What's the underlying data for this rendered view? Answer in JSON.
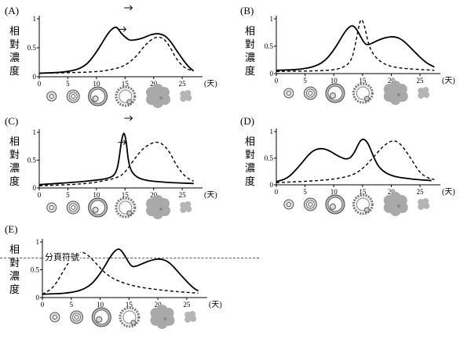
{
  "page_break_label": "分頁符號",
  "chart_data": [
    {
      "type": "line",
      "title": "(A)",
      "ylabel": "相對濃度",
      "xlabel_unit": "(天)",
      "xlim": [
        0,
        28
      ],
      "ylim": [
        0,
        1
      ],
      "x_ticks": [
        0,
        5,
        10,
        15,
        20,
        25
      ],
      "y_ticks": [
        0,
        0.5,
        1
      ],
      "series": [
        {
          "style": "solid",
          "points": [
            [
              0,
              0.06
            ],
            [
              5,
              0.08
            ],
            [
              8,
              0.17
            ],
            [
              10,
              0.42
            ],
            [
              12,
              0.75
            ],
            [
              13,
              0.85
            ],
            [
              13.6,
              0.86
            ],
            [
              14.3,
              0.75
            ],
            [
              15.3,
              0.66
            ],
            [
              16,
              0.62
            ],
            [
              18,
              0.66
            ],
            [
              19.5,
              0.73
            ],
            [
              21,
              0.75
            ],
            [
              22.5,
              0.68
            ],
            [
              24.5,
              0.38
            ],
            [
              26,
              0.18
            ],
            [
              27,
              0.1
            ]
          ]
        },
        {
          "style": "dashed",
          "points": [
            [
              0,
              0.06
            ],
            [
              10,
              0.08
            ],
            [
              13,
              0.13
            ],
            [
              15,
              0.19
            ],
            [
              17,
              0.35
            ],
            [
              18.5,
              0.55
            ],
            [
              20,
              0.67
            ],
            [
              21,
              0.69
            ],
            [
              22,
              0.64
            ],
            [
              23,
              0.49
            ],
            [
              24,
              0.3
            ],
            [
              25.5,
              0.14
            ],
            [
              27,
              0.1
            ]
          ]
        }
      ],
      "has_arrows": true
    },
    {
      "type": "line",
      "title": "(B)",
      "ylabel": "相對濃度",
      "xlabel_unit": "(天)",
      "xlim": [
        0,
        28
      ],
      "ylim": [
        0,
        1
      ],
      "x_ticks": [
        0,
        5,
        10,
        15,
        20,
        25
      ],
      "y_ticks": [
        0,
        0.5,
        1
      ],
      "series": [
        {
          "style": "solid",
          "points": [
            [
              0,
              0.06
            ],
            [
              5,
              0.08
            ],
            [
              8,
              0.18
            ],
            [
              10,
              0.42
            ],
            [
              12,
              0.78
            ],
            [
              13,
              0.88
            ],
            [
              13.6,
              0.86
            ],
            [
              14.3,
              0.75
            ],
            [
              15.3,
              0.55
            ],
            [
              16,
              0.52
            ],
            [
              17.5,
              0.6
            ],
            [
              19,
              0.66
            ],
            [
              20.5,
              0.68
            ],
            [
              22,
              0.62
            ],
            [
              24,
              0.4
            ],
            [
              26,
              0.2
            ],
            [
              27.5,
              0.12
            ]
          ]
        },
        {
          "style": "dashed",
          "points": [
            [
              0,
              0.04
            ],
            [
              8,
              0.05
            ],
            [
              11,
              0.08
            ],
            [
              13,
              0.2
            ],
            [
              13.8,
              0.55
            ],
            [
              14.5,
              0.95
            ],
            [
              14.9,
              1.0
            ],
            [
              15.4,
              0.85
            ],
            [
              16,
              0.55
            ],
            [
              16.8,
              0.35
            ],
            [
              18.5,
              0.18
            ],
            [
              21,
              0.1
            ],
            [
              27.5,
              0.06
            ]
          ]
        }
      ]
    },
    {
      "type": "line",
      "title": "(C)",
      "ylabel": "相對濃度",
      "xlabel_unit": "(天)",
      "xlim": [
        0,
        28
      ],
      "ylim": [
        0,
        1
      ],
      "x_ticks": [
        0,
        5,
        10,
        15,
        20,
        25
      ],
      "y_ticks": [
        0,
        0.5,
        1
      ],
      "series": [
        {
          "style": "solid",
          "points": [
            [
              0,
              0.06
            ],
            [
              6,
              0.1
            ],
            [
              10,
              0.14
            ],
            [
              12,
              0.17
            ],
            [
              13.2,
              0.23
            ],
            [
              13.8,
              0.4
            ],
            [
              14.3,
              0.8
            ],
            [
              14.6,
              0.95
            ],
            [
              14.85,
              1.0
            ],
            [
              15.2,
              0.85
            ],
            [
              15.6,
              0.45
            ],
            [
              16.3,
              0.25
            ],
            [
              18,
              0.14
            ],
            [
              22,
              0.1
            ],
            [
              27,
              0.08
            ]
          ]
        },
        {
          "style": "dashed",
          "points": [
            [
              0,
              0.04
            ],
            [
              8,
              0.07
            ],
            [
              12,
              0.14
            ],
            [
              14,
              0.2
            ],
            [
              15,
              0.28
            ],
            [
              16.5,
              0.5
            ],
            [
              18,
              0.7
            ],
            [
              19.5,
              0.8
            ],
            [
              20.5,
              0.83
            ],
            [
              21.5,
              0.8
            ],
            [
              22.8,
              0.65
            ],
            [
              24,
              0.4
            ],
            [
              25.5,
              0.2
            ],
            [
              27,
              0.12
            ]
          ]
        }
      ],
      "has_arrows": true
    },
    {
      "type": "line",
      "title": "(D)",
      "ylabel": "相對濃度",
      "xlabel_unit": "(天)",
      "xlim": [
        0,
        28
      ],
      "ylim": [
        0,
        1
      ],
      "x_ticks": [
        0,
        5,
        10,
        15,
        20,
        25
      ],
      "y_ticks": [
        0,
        0.5,
        1
      ],
      "series": [
        {
          "style": "solid",
          "points": [
            [
              0,
              0.06
            ],
            [
              2,
              0.12
            ],
            [
              4,
              0.35
            ],
            [
              6,
              0.62
            ],
            [
              7.5,
              0.69
            ],
            [
              9,
              0.66
            ],
            [
              11,
              0.52
            ],
            [
              12.5,
              0.47
            ],
            [
              13.5,
              0.58
            ],
            [
              14.5,
              0.82
            ],
            [
              15.2,
              0.87
            ],
            [
              16,
              0.78
            ],
            [
              17,
              0.5
            ],
            [
              18,
              0.3
            ],
            [
              20,
              0.16
            ],
            [
              24,
              0.1
            ],
            [
              27,
              0.08
            ]
          ]
        },
        {
          "style": "dashed",
          "points": [
            [
              0,
              0.04
            ],
            [
              8,
              0.08
            ],
            [
              12,
              0.14
            ],
            [
              14,
              0.22
            ],
            [
              15.5,
              0.35
            ],
            [
              17,
              0.53
            ],
            [
              18.5,
              0.72
            ],
            [
              20,
              0.83
            ],
            [
              21,
              0.82
            ],
            [
              22,
              0.72
            ],
            [
              23.5,
              0.48
            ],
            [
              25,
              0.22
            ],
            [
              26.5,
              0.12
            ],
            [
              27.5,
              0.1
            ]
          ]
        }
      ]
    },
    {
      "type": "line",
      "title": "(E)",
      "ylabel": "相對濃度",
      "xlabel_unit": "(天)",
      "xlim": [
        0,
        28
      ],
      "ylim": [
        0,
        1
      ],
      "x_ticks": [
        0,
        5,
        10,
        15,
        20,
        25
      ],
      "y_ticks": [
        0,
        0.5,
        1
      ],
      "series": [
        {
          "style": "solid",
          "points": [
            [
              0,
              0.06
            ],
            [
              5,
              0.08
            ],
            [
              8,
              0.18
            ],
            [
              10,
              0.42
            ],
            [
              12,
              0.78
            ],
            [
              13,
              0.88
            ],
            [
              13.6,
              0.86
            ],
            [
              14.3,
              0.75
            ],
            [
              15.3,
              0.57
            ],
            [
              16,
              0.55
            ],
            [
              17.5,
              0.62
            ],
            [
              19,
              0.68
            ],
            [
              20.5,
              0.7
            ],
            [
              22,
              0.64
            ],
            [
              24,
              0.4
            ],
            [
              26,
              0.18
            ],
            [
              27,
              0.12
            ]
          ]
        },
        {
          "style": "dashed",
          "points": [
            [
              0,
              0.06
            ],
            [
              2,
              0.18
            ],
            [
              4,
              0.55
            ],
            [
              5.5,
              0.77
            ],
            [
              6.5,
              0.82
            ],
            [
              7.5,
              0.8
            ],
            [
              9,
              0.65
            ],
            [
              11,
              0.42
            ],
            [
              13,
              0.3
            ],
            [
              16,
              0.2
            ],
            [
              20,
              0.14
            ],
            [
              24,
              0.1
            ],
            [
              27,
              0.08
            ]
          ]
        }
      ]
    }
  ]
}
